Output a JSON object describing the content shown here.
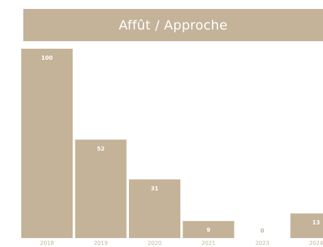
{
  "colors": {
    "accent": "#c4b399",
    "value_on_bar": "#ffffff",
    "value_off_bar": "#c4b399",
    "tick_text": "#c4b399",
    "title_text": "#ffffff"
  },
  "chart_data": {
    "type": "bar",
    "title": "Affût / Approche",
    "xlabel": "",
    "ylabel": "",
    "categories": [
      "2018",
      "2019",
      "2020",
      "2021",
      "2023",
      "2024"
    ],
    "values": [
      100,
      52,
      31,
      9,
      0,
      13
    ],
    "ylim": [
      0,
      100
    ],
    "grid": false,
    "legend": "none"
  }
}
